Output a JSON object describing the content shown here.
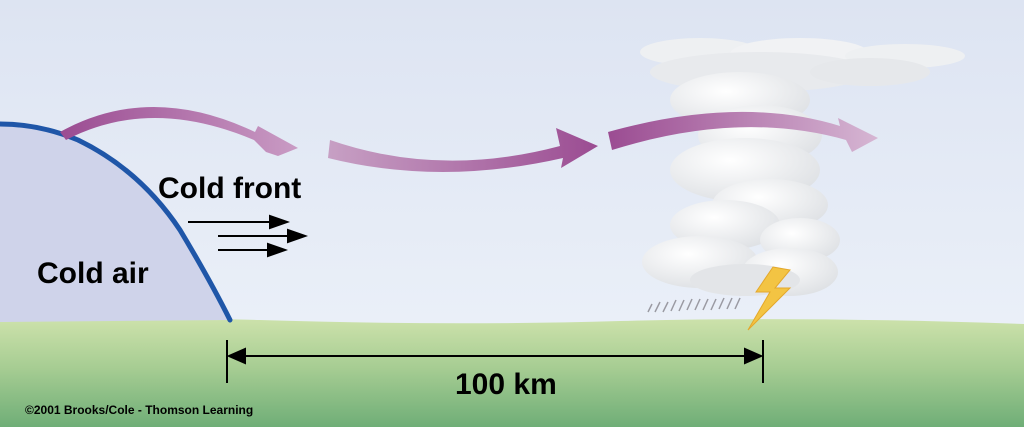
{
  "labels": {
    "cold_front": "Cold front",
    "cold_air": "Cold air",
    "distance": "100 km",
    "copyright": "©2001 Brooks/Cole - Thomson Learning"
  },
  "colors": {
    "sky_top": "#dfe6f3",
    "sky_bottom": "#eef3fa",
    "ground_top": "#c9dfa6",
    "ground_bottom": "#7fb87f",
    "cold_air_fill": "#cfd3ea",
    "front_line": "#1f56a8",
    "flow_arrow": "#a04f95",
    "cloud": "#f2f3f5",
    "lightning": "#f3c443",
    "rain": "#9a9aa2"
  },
  "icons": {
    "lightning": "lightning-bolt-icon",
    "rain": "rain-icon"
  }
}
